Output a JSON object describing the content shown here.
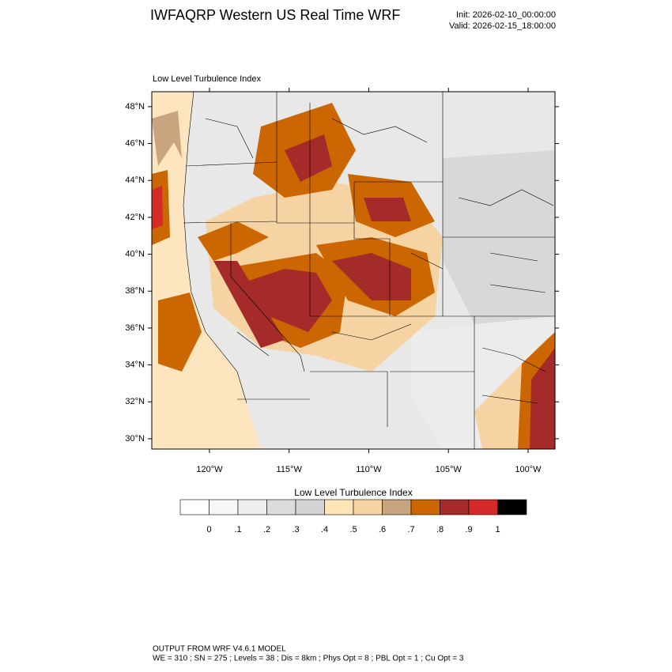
{
  "header": {
    "title": "IWFAQRP Western US Real Time WRF",
    "init": "Init: 2026-02-10_00:00:00",
    "valid": "Valid: 2026-02-15_18:00:00"
  },
  "map": {
    "subtitle": "Low Level Turbulence Index",
    "xlim": [
      -123.62,
      -98.31
    ],
    "ylim": [
      29.44,
      48.81
    ],
    "xticks": [
      {
        "value": -120,
        "label": "120°W"
      },
      {
        "value": -115,
        "label": "115°W"
      },
      {
        "value": -110,
        "label": "110°W"
      },
      {
        "value": -105,
        "label": "105°W"
      },
      {
        "value": -100,
        "label": "100°W"
      }
    ],
    "yticks": [
      {
        "value": 30,
        "label": "30°N"
      },
      {
        "value": 32,
        "label": "32°N"
      },
      {
        "value": 34,
        "label": "34°N"
      },
      {
        "value": 36,
        "label": "36°N"
      },
      {
        "value": 38,
        "label": "38°N"
      },
      {
        "value": 40,
        "label": "40°N"
      },
      {
        "value": 42,
        "label": "42°N"
      },
      {
        "value": 44,
        "label": "44°N"
      },
      {
        "value": 46,
        "label": "46°N"
      },
      {
        "value": 48,
        "label": "48°N"
      }
    ]
  },
  "colorbar": {
    "title": "Low Level Turbulence Index",
    "colors": [
      "#ffffff",
      "#f7f7f7",
      "#eeeeee",
      "#dcdcdc",
      "#d3d3d3",
      "#ffe4b5",
      "#f5d3a2",
      "#c9a57f",
      "#cc6600",
      "#a52a2a",
      "#d42a2a",
      "#000000"
    ],
    "levels": [
      0,
      {
        "value": 0.1,
        "label": ".1"
      },
      {
        "value": 0.2,
        "label": ".2"
      },
      {
        "value": 0.3,
        "label": ".3"
      },
      {
        "value": 0.4,
        "label": ".4"
      },
      {
        "value": 0.5,
        "label": ".5"
      },
      {
        "value": 0.6,
        "label": ".6"
      },
      {
        "value": 0.7,
        "label": ".7"
      },
      {
        "value": 0.8,
        "label": ".8"
      },
      {
        "value": 0.9,
        "label": ".9"
      },
      1
    ]
  },
  "footer": {
    "line1": "OUTPUT FROM WRF V4.6.1 MODEL",
    "line2": "WE = 310 ; SN = 275 ; Levels = 38 ; Dis = 8km ; Phys Opt = 8 ; PBL Opt = 1 ; Cu Opt = 3"
  }
}
